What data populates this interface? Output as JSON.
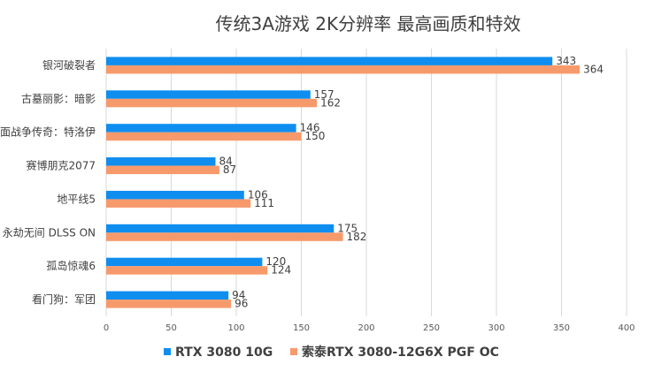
{
  "chart_data": {
    "type": "bar",
    "orientation": "horizontal",
    "title": "传统3A游戏 2K分辨率 最高画质和特效",
    "categories": [
      "银河破裂者",
      "古墓丽影：暗影",
      "面战争传奇：特洛伊",
      "赛博朋克2077",
      "地平线5",
      "永劫无间 DLSS ON",
      "孤岛惊魂6",
      "看门狗：军团"
    ],
    "series": [
      {
        "name": "RTX 3080 10G",
        "color": "#0f8ef0",
        "values": [
          343,
          157,
          146,
          84,
          106,
          175,
          120,
          94
        ]
      },
      {
        "name": "索泰RTX 3080-12G6X PGF OC",
        "color": "#f79a6b",
        "values": [
          364,
          162,
          150,
          87,
          111,
          182,
          124,
          96
        ]
      }
    ],
    "xlim": [
      0,
      400
    ],
    "xticks": [
      0,
      50,
      100,
      150,
      200,
      250,
      300,
      350,
      400
    ],
    "grid": true,
    "legend_position": "bottom"
  }
}
